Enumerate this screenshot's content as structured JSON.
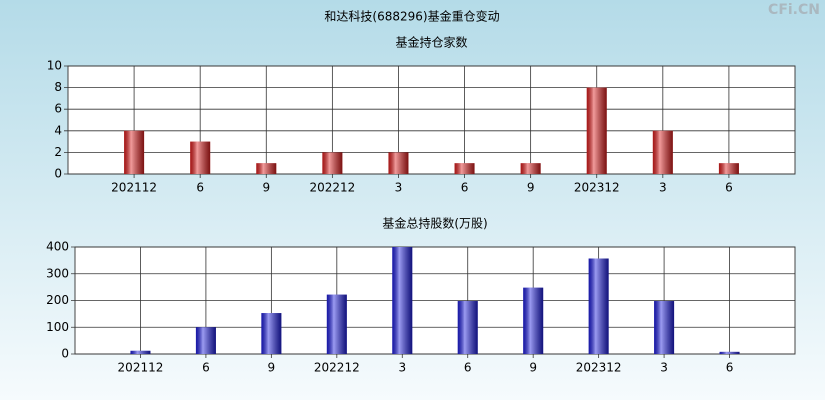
{
  "title": "和达科技(688296)基金重仓变动",
  "watermark": "CFi.CN",
  "chart_data": [
    {
      "type": "bar",
      "title": "基金持仓家数",
      "categories": [
        "202112",
        "6",
        "9",
        "202212",
        "3",
        "6",
        "9",
        "202312",
        "3",
        "6"
      ],
      "values": [
        4,
        3,
        1,
        2,
        2,
        1,
        1,
        8,
        4,
        1
      ],
      "color": "#e02020",
      "ylim": [
        0,
        10
      ],
      "yticks": [
        0,
        2,
        4,
        6,
        8,
        10
      ],
      "grid": true
    },
    {
      "type": "bar",
      "title": "基金总持股数(万股)",
      "categories": [
        "202112",
        "6",
        "9",
        "202212",
        "3",
        "6",
        "9",
        "202312",
        "3",
        "6"
      ],
      "values": [
        12,
        100,
        153,
        222,
        400,
        198,
        248,
        357,
        198,
        8
      ],
      "color": "#2020e0",
      "ylim": [
        0,
        400
      ],
      "yticks": [
        0,
        100,
        200,
        300,
        400
      ],
      "grid": true
    }
  ]
}
